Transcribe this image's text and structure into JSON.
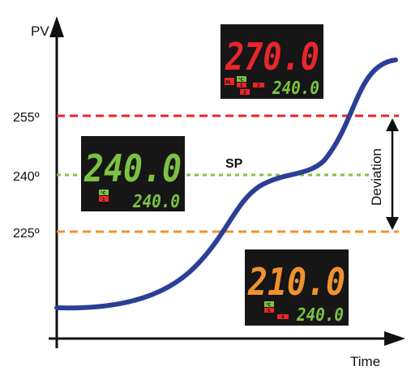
{
  "axes": {
    "y_label": "PV",
    "x_label": "Time"
  },
  "levels": [
    {
      "label": "255º",
      "value": 255,
      "color": "#e8262b"
    },
    {
      "label": "240º",
      "value": 240,
      "color": "#7cc242"
    },
    {
      "label": "225º",
      "value": 225,
      "color": "#f0912f"
    }
  ],
  "sp_label": "SP",
  "deviation_label": "Deviation",
  "curve_color": "#2b3f96",
  "displays": [
    {
      "main": "270.0",
      "sub": "240.0",
      "main_color": "#e8262b",
      "sub_color": "#7cc242",
      "badges": [
        "AL",
        "°C",
        "1",
        "2",
        "3"
      ]
    },
    {
      "main": "240.0",
      "sub": "240.0",
      "main_color": "#7cc242",
      "sub_color": "#7cc242",
      "badges": [
        "°C",
        "1"
      ]
    },
    {
      "main": "210.0",
      "sub": "240.0",
      "main_color": "#f0912f",
      "sub_color": "#7cc242",
      "badges": [
        "°C",
        "1",
        "4"
      ]
    }
  ]
}
